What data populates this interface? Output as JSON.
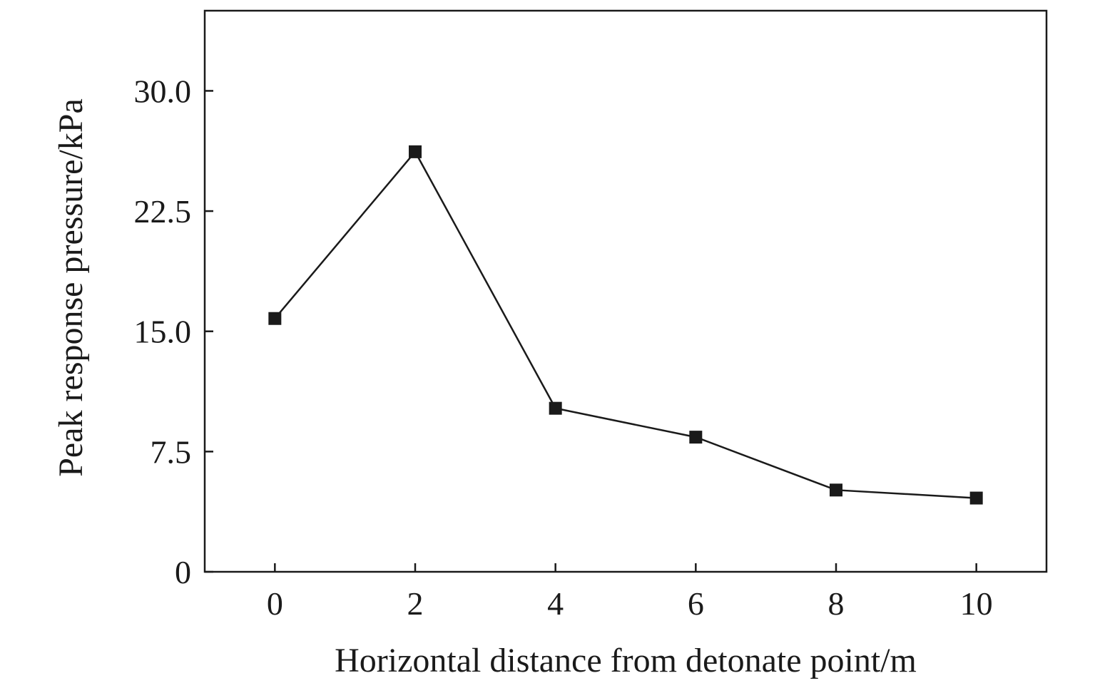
{
  "chart_data": {
    "type": "line",
    "title": "",
    "xlabel": "Horizontal distance from detonate point/m",
    "ylabel": "Peak response pressure/kPa",
    "x": [
      0,
      2,
      4,
      6,
      8,
      10
    ],
    "series": [
      {
        "values": [
          15.8,
          26.2,
          10.2,
          8.4,
          5.1,
          4.6
        ],
        "marker": "square",
        "color": "#1a1a1a"
      }
    ],
    "xlim": [
      -1,
      11
    ],
    "ylim": [
      0,
      35
    ],
    "xticks": [
      0,
      2,
      4,
      6,
      8,
      10
    ],
    "xtick_labels": [
      "0",
      "2",
      "4",
      "6",
      "8",
      "10"
    ],
    "yticks": [
      0,
      7.5,
      15,
      22.5,
      30
    ],
    "ytick_labels": [
      "0",
      "7.5",
      "15.0",
      "22.5",
      "30.0"
    ],
    "grid": false,
    "legend": "none"
  }
}
